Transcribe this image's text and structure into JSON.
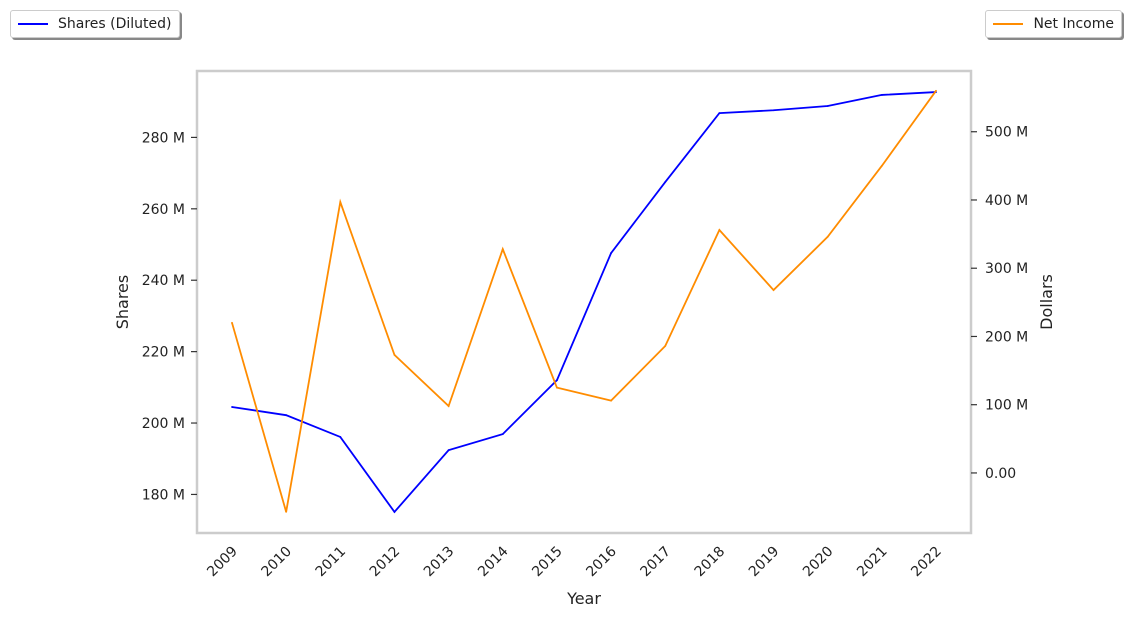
{
  "chart_data": {
    "type": "line",
    "xlabel": "Year",
    "x": [
      2009,
      2010,
      2011,
      2012,
      2013,
      2014,
      2015,
      2016,
      2017,
      2018,
      2019,
      2020,
      2021,
      2022
    ],
    "series": [
      {
        "name": "Shares (Diluted)",
        "axis": "left",
        "color": "#0000ff",
        "values": [
          204.5,
          202.2,
          196.1,
          175.1,
          192.4,
          196.9,
          212.0,
          247.6,
          267.5,
          286.8,
          287.6,
          288.8,
          291.9,
          292.7
        ]
      },
      {
        "name": "Net Income",
        "axis": "right",
        "color": "#ff8c00",
        "values": [
          220,
          -57,
          397,
          173,
          98,
          328,
          125,
          106,
          186,
          356,
          268,
          346,
          450,
          560
        ]
      }
    ],
    "left_axis": {
      "label": "Shares",
      "ylim": [
        169.2,
        298.6
      ],
      "ticks": [
        180,
        200,
        220,
        240,
        260,
        280
      ],
      "tick_labels": [
        "180 M",
        "200 M",
        "220 M",
        "240 M",
        "260 M",
        "280 M"
      ]
    },
    "right_axis": {
      "label": "Dollars",
      "ylim": [
        -88,
        589
      ],
      "ticks": [
        0,
        100,
        200,
        300,
        400,
        500
      ],
      "tick_labels": [
        "0.00",
        "100 M",
        "200 M",
        "300 M",
        "400 M",
        "500 M"
      ]
    },
    "grid": false,
    "legend_placement": [
      "top-left",
      "top-right"
    ]
  }
}
